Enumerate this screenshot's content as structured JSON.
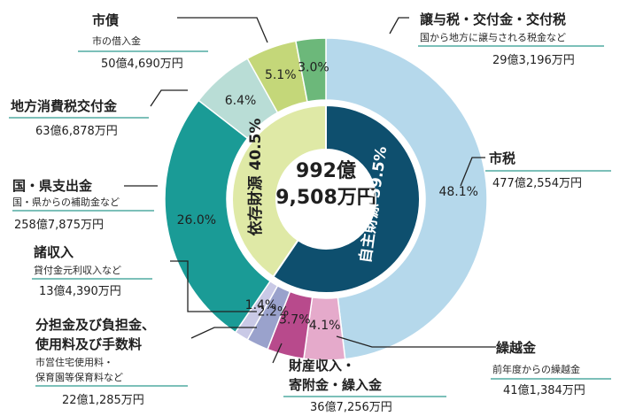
{
  "chart_data": {
    "type": "pie",
    "total_label": [
      "992億",
      "9,508万円"
    ],
    "inner_ring": [
      {
        "label": "自主財源 59.5%",
        "value": 59.5,
        "color": "#0e4f6e",
        "text_color": "#ffffff"
      },
      {
        "label": "依存財源 40.5%",
        "value": 40.5,
        "color": "#dfe9a6",
        "text_color": "#1f1f1f"
      }
    ],
    "slices": [
      {
        "name": "市税",
        "desc": "",
        "amount": "477億2,554万円",
        "value": 48.1,
        "pct": "48.1%",
        "color": "#b5d8eb"
      },
      {
        "name": "繰越金",
        "desc": "前年度からの繰越金",
        "amount": "41億1,384万円",
        "value": 4.1,
        "pct": "4.1%",
        "color": "#e5aacb"
      },
      {
        "name": "財産収入・寄附金・繰入金",
        "desc": "",
        "amount": "36億7,256万円",
        "value": 3.7,
        "pct": "3.7%",
        "color": "#b84a8c"
      },
      {
        "name": "分担金及び負担金、使用料及び手数料",
        "desc": "市営住宅使用料・保育園等保育料など",
        "amount": "22億1,285万円",
        "value": 2.2,
        "pct": "2.2%",
        "color": "#9aa2cc"
      },
      {
        "name": "諸収入",
        "desc": "貸付金元利収入など",
        "amount": "13億4,390万円",
        "value": 1.4,
        "pct": "1.4%",
        "color": "#c9c9e6"
      },
      {
        "name": "国・県支出金",
        "desc": "国・県からの補助金など",
        "amount": "258億7,875万円",
        "value": 26.0,
        "pct": "26.0%",
        "color": "#1a9b96"
      },
      {
        "name": "地方消費税交付金",
        "desc": "",
        "amount": "63億6,878万円",
        "value": 6.4,
        "pct": "6.4%",
        "color": "#b9ddd6"
      },
      {
        "name": "市債",
        "desc": "市の借入金",
        "amount": "50億4,690万円",
        "value": 5.1,
        "pct": "5.1%",
        "color": "#c4d779"
      },
      {
        "name": "譲与税・交付金・交付税",
        "desc": "国から地方に譲与される税金など",
        "amount": "29億3,196万円",
        "value": 3.0,
        "pct": "3.0%",
        "color": "#6cb87a"
      }
    ]
  },
  "labels": {
    "shizei": {
      "name": "市税",
      "amount": "477億2,554万円"
    },
    "kurikoshi": {
      "name": "繰越金",
      "desc": "前年度からの繰越金",
      "amount": "41億1,384万円"
    },
    "zaisan": {
      "name1": "財産収入・",
      "name2": "寄附金・繰入金",
      "amount": "36億7,256万円"
    },
    "buntan": {
      "name1": "分担金及び負担金、",
      "name2": "使用料及び手数料",
      "desc1": "市営住宅使用料・",
      "desc2": "保育園等保育料など",
      "amount": "22億1,285万円"
    },
    "shoshu": {
      "name": "諸収入",
      "desc": "貸付金元利収入など",
      "amount": "13億4,390万円"
    },
    "kokuken": {
      "name": "国・県支出金",
      "desc": "国・県からの補助金など",
      "amount": "258億7,875万円"
    },
    "chiho": {
      "name": "地方消費税交付金",
      "amount": "63億6,878万円"
    },
    "shisai": {
      "name": "市債",
      "desc": "市の借入金",
      "amount": "50億4,690万円"
    },
    "joyo": {
      "name": "譲与税・交付金・交付税",
      "desc": "国から地方に譲与される税金など",
      "amount": "29億3,196万円"
    }
  }
}
